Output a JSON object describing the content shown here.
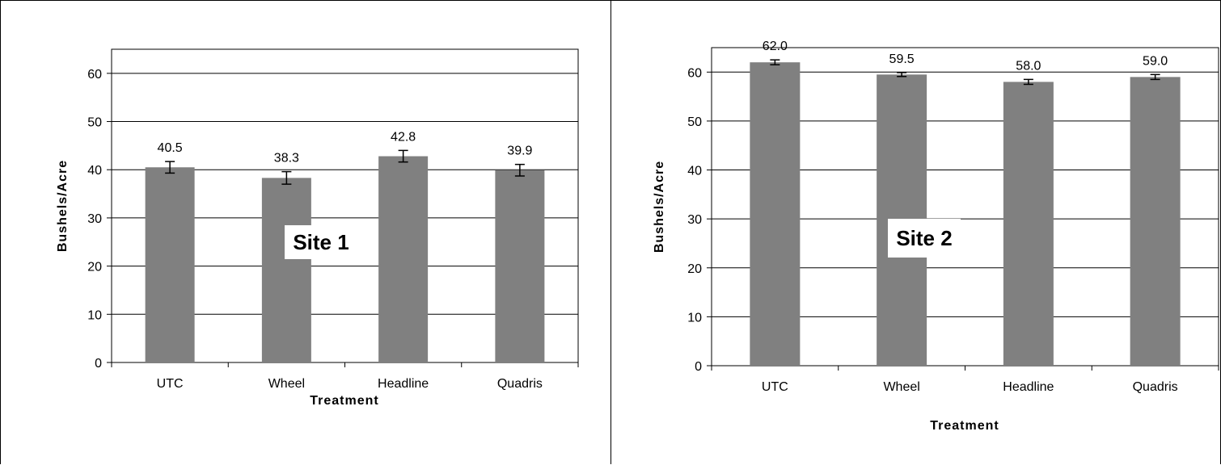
{
  "chart_data": [
    {
      "type": "bar",
      "annotation": "Site 1",
      "categories": [
        "UTC",
        "Wheel",
        "Headline",
        "Quadris"
      ],
      "values": [
        40.5,
        38.3,
        42.8,
        39.9
      ],
      "value_labels": [
        "40.5",
        "38.3",
        "42.8",
        "39.9"
      ],
      "error": [
        1.2,
        1.3,
        1.2,
        1.2
      ],
      "xlabel": "Treatment",
      "ylabel": "Bushels/Acre",
      "ylim": [
        0,
        65
      ],
      "yticks": [
        0,
        10,
        20,
        30,
        40,
        50,
        60
      ],
      "grid": true,
      "bar_color": "#808080"
    },
    {
      "type": "bar",
      "annotation": "Site 2",
      "categories": [
        "UTC",
        "Wheel",
        "Headline",
        "Quadris"
      ],
      "values": [
        62.0,
        59.5,
        58.0,
        59.0
      ],
      "value_labels": [
        "62.0",
        "59.5",
        "58.0",
        "59.0"
      ],
      "error": [
        0.5,
        0.4,
        0.5,
        0.5
      ],
      "xlabel": "Treatment",
      "ylabel": "Bushels/Acre",
      "ylim": [
        0,
        65
      ],
      "yticks": [
        0,
        10,
        20,
        30,
        40,
        50,
        60
      ],
      "grid": true,
      "bar_color": "#808080"
    }
  ]
}
